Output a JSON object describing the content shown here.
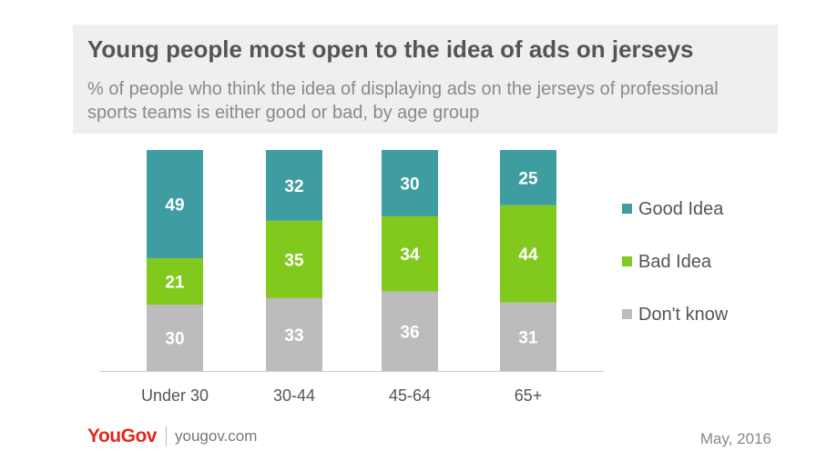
{
  "header": {
    "title": "Young people most open to the idea of ads on jerseys",
    "subtitle": "% of people who think the idea of displaying ads on the jerseys of professional sports teams is either good or bad, by age group"
  },
  "footer": {
    "brand_you": "You",
    "brand_gov": "Gov",
    "url": "yougov.com",
    "date": "May, 2016"
  },
  "chart_data": {
    "type": "bar",
    "stacked": true,
    "categories": [
      "Under 30",
      "30-44",
      "45-64",
      "65+"
    ],
    "series": [
      {
        "name": "Don't know",
        "values": [
          30,
          33,
          36,
          31
        ],
        "color": "#bcbcbc"
      },
      {
        "name": "Bad Idea",
        "values": [
          21,
          35,
          34,
          44
        ],
        "color": "#82c91e"
      },
      {
        "name": "Good Idea",
        "values": [
          49,
          32,
          30,
          25
        ],
        "color": "#3d9da0"
      }
    ],
    "legend_order": [
      "Good Idea",
      "Bad Idea",
      "Don't know"
    ],
    "legend_position": "right",
    "ylim": [
      0,
      100
    ],
    "grid": false
  }
}
